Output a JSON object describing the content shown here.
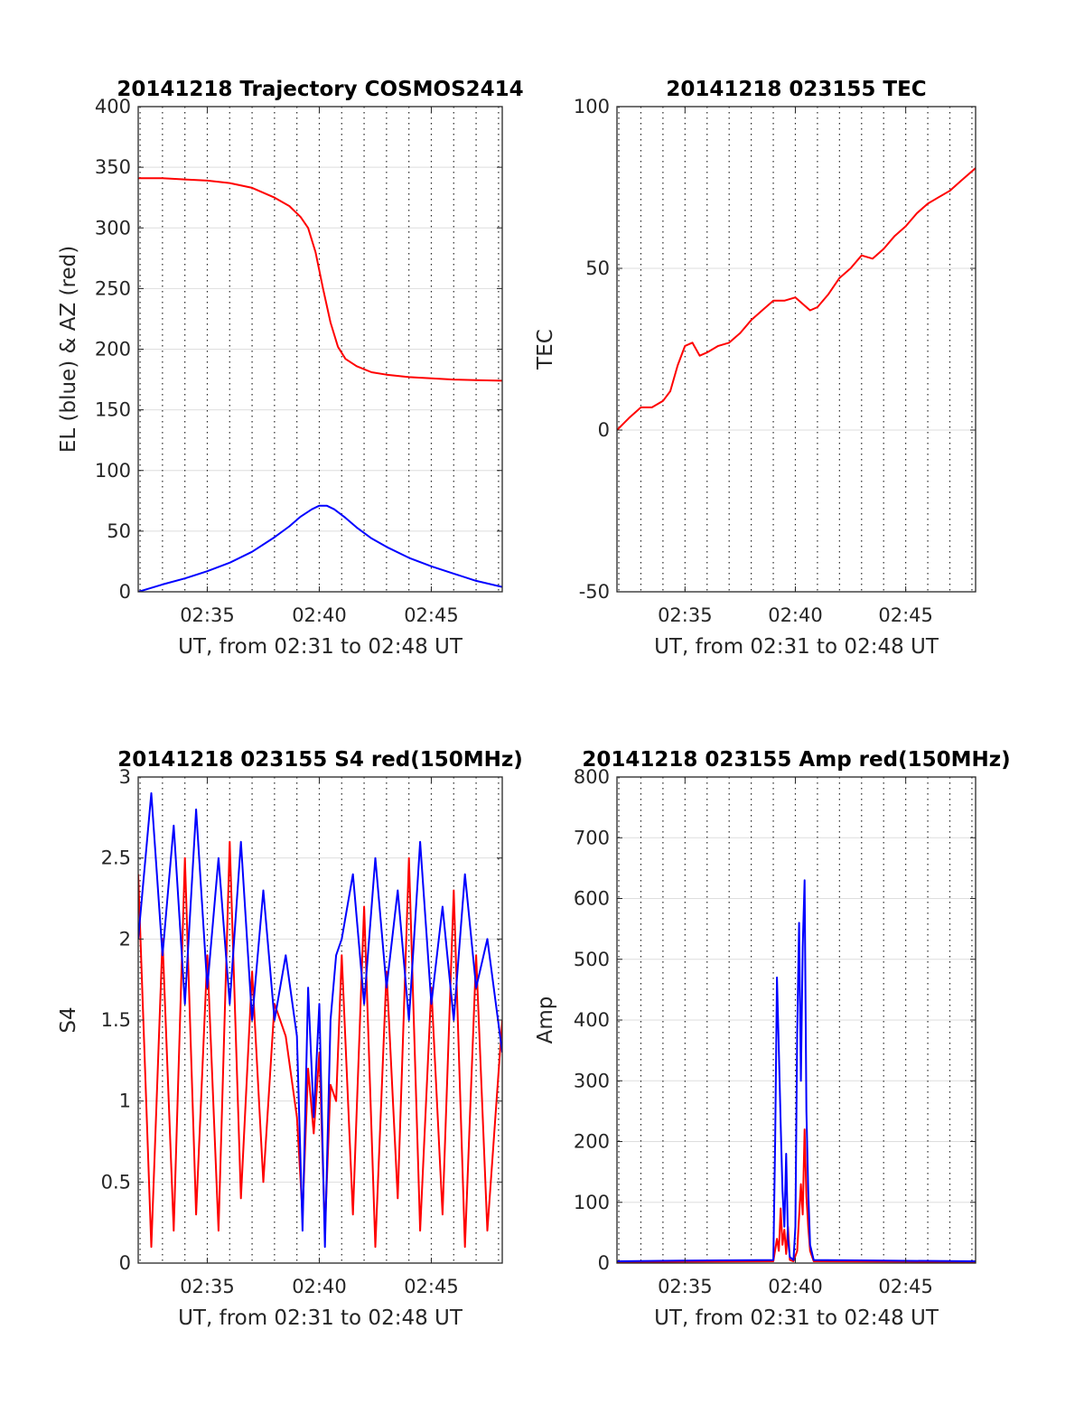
{
  "chart_data": [
    {
      "type": "line",
      "title": "20141218 Trajectory COSMOS2414",
      "xlabel": "UT, from 02:31 to 02:48 UT",
      "ylabel": "EL (blue) & AZ (red)",
      "xlim": [
        "02:31:55",
        "02:48:10"
      ],
      "ylim": [
        0,
        400
      ],
      "yticks": [
        0,
        50,
        100,
        150,
        200,
        250,
        300,
        350,
        400
      ],
      "xtick_labels": [
        "02:35",
        "02:40",
        "02:45"
      ],
      "grid": "horizontal solid, vertical dotted every minute",
      "series": [
        {
          "color": "#ff0000",
          "x": [
            "02:31:55",
            "02:33:00",
            "02:34:00",
            "02:35:00",
            "02:36:00",
            "02:37:00",
            "02:38:00",
            "02:38:40",
            "02:39:10",
            "02:39:30",
            "02:39:50",
            "02:40:10",
            "02:40:30",
            "02:40:50",
            "02:41:10",
            "02:41:40",
            "02:42:20",
            "02:43:00",
            "02:44:00",
            "02:45:00",
            "02:46:00",
            "02:47:00",
            "02:48:10"
          ],
          "values": [
            341,
            341,
            340,
            339,
            337,
            333,
            325,
            318,
            309,
            300,
            280,
            250,
            222,
            202,
            192,
            186,
            181,
            179,
            177,
            176,
            175,
            174.5,
            174
          ]
        },
        {
          "color": "#0000ff",
          "x": [
            "02:31:55",
            "02:33:00",
            "02:34:00",
            "02:35:00",
            "02:36:00",
            "02:37:00",
            "02:38:00",
            "02:38:40",
            "02:39:10",
            "02:39:40",
            "02:40:00",
            "02:40:20",
            "02:40:40",
            "02:41:10",
            "02:41:40",
            "02:42:20",
            "02:43:00",
            "02:44:00",
            "02:45:00",
            "02:46:00",
            "02:47:00",
            "02:48:10"
          ],
          "values": [
            0,
            6,
            11,
            17,
            24,
            33,
            45,
            54,
            62,
            68,
            71,
            71,
            68,
            61,
            53,
            44,
            37,
            28,
            21,
            15,
            9,
            4
          ]
        }
      ]
    },
    {
      "type": "line",
      "title": "20141218 023155 TEC",
      "xlabel": "UT, from 02:31 to 02:48 UT",
      "ylabel": "TEC",
      "xlim": [
        "02:31:55",
        "02:48:10"
      ],
      "ylim": [
        -50,
        100
      ],
      "yticks": [
        -50,
        0,
        50,
        100
      ],
      "xtick_labels": [
        "02:35",
        "02:40",
        "02:45"
      ],
      "grid": "horizontal solid, vertical dotted every minute",
      "series": [
        {
          "color": "#ff0000",
          "x": [
            "02:31:55",
            "02:32:30",
            "02:33:00",
            "02:33:30",
            "02:34:00",
            "02:34:20",
            "02:34:40",
            "02:35:00",
            "02:35:20",
            "02:35:40",
            "02:36:00",
            "02:36:30",
            "02:37:00",
            "02:37:30",
            "02:38:00",
            "02:38:30",
            "02:39:00",
            "02:39:30",
            "02:40:00",
            "02:40:20",
            "02:40:40",
            "02:41:00",
            "02:41:30",
            "02:42:00",
            "02:42:30",
            "02:43:00",
            "02:43:30",
            "02:44:00",
            "02:44:30",
            "02:45:00",
            "02:45:30",
            "02:46:00",
            "02:46:30",
            "02:47:00",
            "02:47:30",
            "02:48:10"
          ],
          "values": [
            0,
            4,
            7,
            7,
            9,
            12,
            20,
            26,
            27,
            23,
            24,
            26,
            27,
            30,
            34,
            37,
            40,
            40,
            41,
            39,
            37,
            38,
            42,
            47,
            50,
            54,
            53,
            56,
            60,
            63,
            67,
            70,
            72,
            74,
            77,
            81
          ]
        }
      ]
    },
    {
      "type": "line",
      "title": "20141218 023155 S4 red(150MHz)",
      "xlabel": "UT, from 02:31 to 02:48 UT",
      "ylabel": "S4",
      "xlim": [
        "02:31:55",
        "02:48:10"
      ],
      "ylim": [
        0,
        3
      ],
      "yticks": [
        0,
        0.5,
        1,
        1.5,
        2,
        2.5,
        3
      ],
      "xtick_labels": [
        "02:35",
        "02:40",
        "02:45"
      ],
      "grid": "horizontal solid, vertical dotted every minute",
      "series": [
        {
          "color": "#ff0000",
          "x": [
            "02:31:55",
            "02:32:30",
            "02:33:00",
            "02:33:30",
            "02:34:00",
            "02:34:30",
            "02:35:00",
            "02:35:30",
            "02:36:00",
            "02:36:30",
            "02:37:00",
            "02:37:30",
            "02:38:00",
            "02:38:30",
            "02:39:00",
            "02:39:15",
            "02:39:30",
            "02:39:45",
            "02:40:00",
            "02:40:15",
            "02:40:30",
            "02:40:45",
            "02:41:00",
            "02:41:30",
            "02:42:00",
            "02:42:30",
            "02:43:00",
            "02:43:30",
            "02:44:00",
            "02:44:30",
            "02:45:00",
            "02:45:30",
            "02:46:00",
            "02:46:30",
            "02:47:00",
            "02:47:30",
            "02:48:10"
          ],
          "values": [
            2.4,
            0.1,
            2.0,
            0.2,
            2.5,
            0.3,
            1.9,
            0.2,
            2.6,
            0.4,
            1.8,
            0.5,
            1.6,
            1.4,
            0.9,
            0.3,
            1.2,
            0.8,
            1.3,
            0.2,
            1.1,
            1.0,
            1.9,
            0.3,
            2.2,
            0.1,
            1.8,
            0.4,
            2.5,
            0.2,
            1.7,
            0.3,
            2.3,
            0.1,
            1.9,
            0.2,
            1.5
          ]
        },
        {
          "color": "#0000ff",
          "x": [
            "02:31:55",
            "02:32:30",
            "02:33:00",
            "02:33:30",
            "02:34:00",
            "02:34:30",
            "02:35:00",
            "02:35:30",
            "02:36:00",
            "02:36:30",
            "02:37:00",
            "02:37:30",
            "02:38:00",
            "02:38:30",
            "02:39:00",
            "02:39:15",
            "02:39:30",
            "02:39:45",
            "02:40:00",
            "02:40:15",
            "02:40:30",
            "02:40:45",
            "02:41:00",
            "02:41:30",
            "02:42:00",
            "02:42:30",
            "02:43:00",
            "02:43:30",
            "02:44:00",
            "02:44:30",
            "02:45:00",
            "02:45:30",
            "02:46:00",
            "02:46:30",
            "02:47:00",
            "02:47:30",
            "02:48:10"
          ],
          "values": [
            2.0,
            2.9,
            1.9,
            2.7,
            1.6,
            2.8,
            1.7,
            2.5,
            1.6,
            2.6,
            1.5,
            2.3,
            1.5,
            1.9,
            1.4,
            0.2,
            1.7,
            0.9,
            1.6,
            0.1,
            1.5,
            1.9,
            2.0,
            2.4,
            1.6,
            2.5,
            1.7,
            2.3,
            1.5,
            2.6,
            1.6,
            2.2,
            1.5,
            2.4,
            1.7,
            2.0,
            1.3
          ]
        }
      ]
    },
    {
      "type": "line",
      "title": "20141218 023155 Amp red(150MHz)",
      "xlabel": "UT, from 02:31 to 02:48 UT",
      "ylabel": "Amp",
      "xlim": [
        "02:31:55",
        "02:48:10"
      ],
      "ylim": [
        0,
        800
      ],
      "yticks": [
        0,
        100,
        200,
        300,
        400,
        500,
        600,
        700,
        800
      ],
      "xtick_labels": [
        "02:35",
        "02:40",
        "02:45"
      ],
      "grid": "horizontal solid, vertical dotted every minute",
      "series": [
        {
          "color": "#ff0000",
          "x": [
            "02:31:55",
            "02:39:00",
            "02:39:10",
            "02:39:15",
            "02:39:20",
            "02:39:25",
            "02:39:30",
            "02:39:35",
            "02:39:40",
            "02:39:45",
            "02:39:55",
            "02:40:05",
            "02:40:15",
            "02:40:20",
            "02:40:25",
            "02:40:30",
            "02:40:35",
            "02:40:40",
            "02:40:50",
            "02:48:10"
          ],
          "values": [
            2,
            3,
            40,
            20,
            90,
            30,
            55,
            15,
            60,
            5,
            3,
            20,
            130,
            80,
            220,
            110,
            60,
            20,
            3,
            2
          ]
        },
        {
          "color": "#0000ff",
          "x": [
            "02:31:55",
            "02:35:00",
            "02:39:00",
            "02:39:05",
            "02:39:10",
            "02:39:15",
            "02:39:20",
            "02:39:25",
            "02:39:30",
            "02:39:35",
            "02:39:40",
            "02:39:45",
            "02:39:55",
            "02:40:00",
            "02:40:05",
            "02:40:10",
            "02:40:15",
            "02:40:20",
            "02:40:25",
            "02:40:30",
            "02:40:35",
            "02:40:40",
            "02:40:50",
            "02:44:00",
            "02:48:10"
          ],
          "values": [
            3,
            4,
            5,
            200,
            470,
            350,
            230,
            120,
            60,
            180,
            40,
            10,
            5,
            60,
            380,
            560,
            300,
            520,
            630,
            250,
            120,
            30,
            5,
            4,
            3
          ]
        }
      ]
    }
  ]
}
